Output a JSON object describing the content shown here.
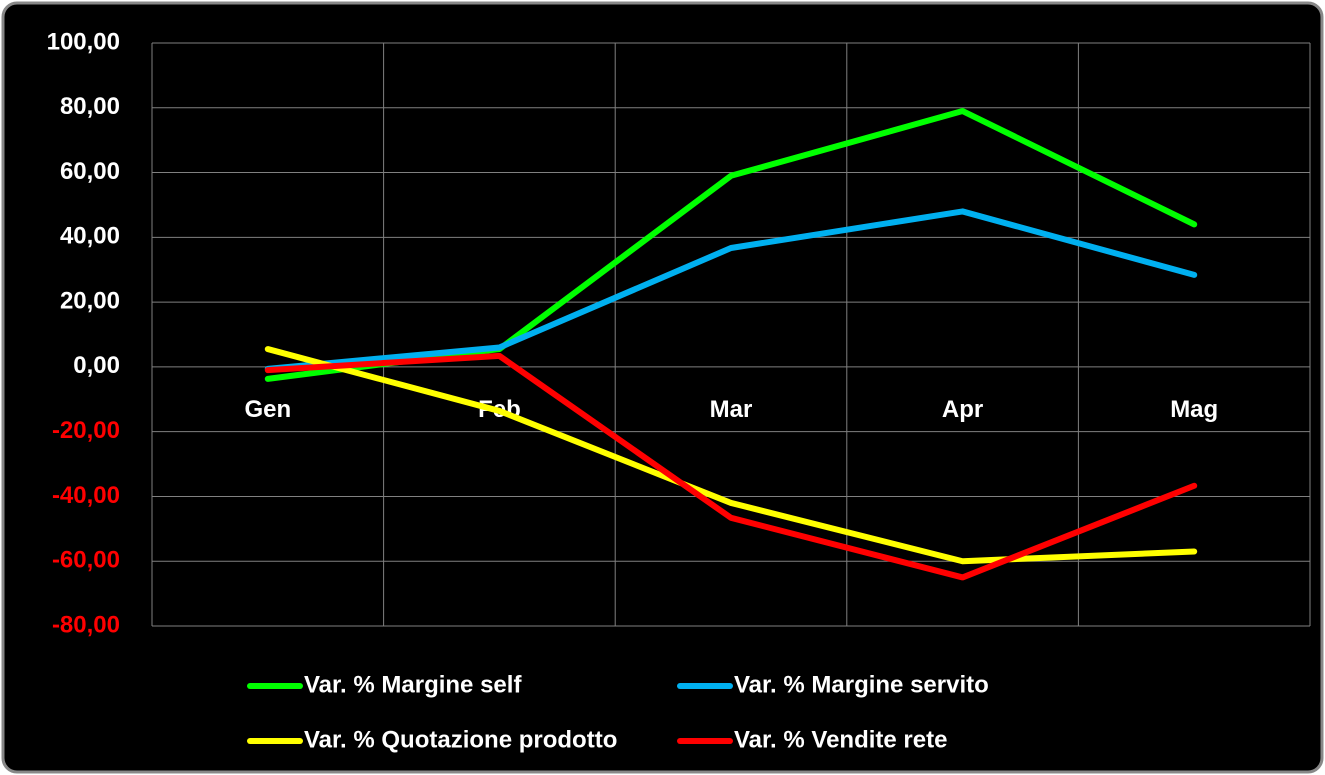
{
  "chart_data": {
    "type": "line",
    "categories": [
      "Gen",
      "Feb",
      "Mar",
      "Apr",
      "Mag"
    ],
    "series": [
      {
        "name": "Var. % Margine self",
        "color": "#00ff00",
        "values": [
          -3.7,
          5.5,
          59,
          79,
          44
        ]
      },
      {
        "name": "Var. % Margine servito",
        "color": "#00b0f0",
        "values": [
          -0.6,
          6,
          36.7,
          48,
          28.4
        ]
      },
      {
        "name": "Var. % Quotazione prodotto",
        "color": "#ffff00",
        "values": [
          5.5,
          -13.6,
          -42,
          -60,
          -57
        ]
      },
      {
        "name": "Var. % Vendite rete",
        "color": "#ff0000",
        "values": [
          -1,
          3.4,
          -46.6,
          -65,
          -36.7
        ]
      }
    ],
    "ylim": [
      -80,
      100
    ],
    "yticks": [
      {
        "value": -80,
        "label": "-80,00"
      },
      {
        "value": -60,
        "label": "-60,00"
      },
      {
        "value": -40,
        "label": "-40,00"
      },
      {
        "value": -20,
        "label": "-20,00"
      },
      {
        "value": 0,
        "label": "0,00"
      },
      {
        "value": 20,
        "label": "20,00"
      },
      {
        "value": 40,
        "label": "40,00"
      },
      {
        "value": 60,
        "label": "60,00"
      },
      {
        "value": 80,
        "label": "80,00"
      },
      {
        "value": 100,
        "label": "100,00"
      }
    ],
    "grid": true,
    "tick_color": "#ffffff",
    "negative_tick_color": "#ff0000",
    "legend": "bottom"
  }
}
